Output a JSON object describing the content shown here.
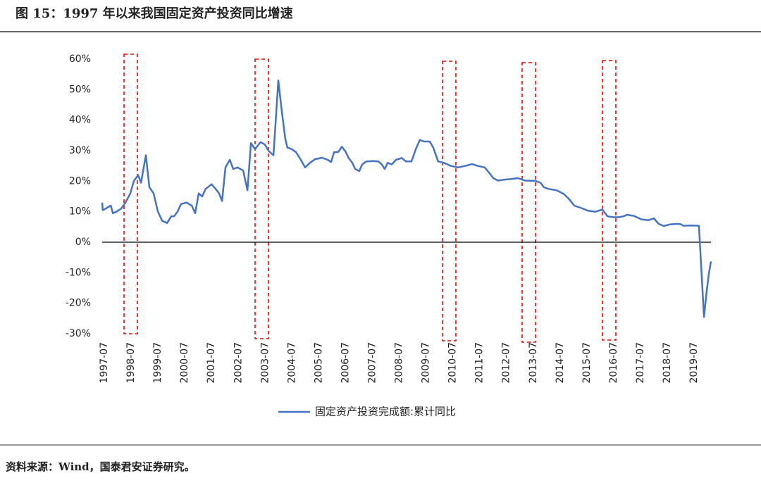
{
  "chart_data": {
    "type": "line",
    "title": "图 15：1997 年以来我国固定资产投资同比增速",
    "source": "资料来源：Wind，国泰君安证券研究。",
    "x": [
      1997.42,
      1997.44,
      1997.55,
      1997.74,
      1997.82,
      1997.95,
      1998.13,
      1998.29,
      1998.47,
      1998.6,
      1998.76,
      1998.87,
      1999.05,
      1999.18,
      1999.34,
      1999.5,
      1999.66,
      1999.84,
      2000.0,
      2000.1,
      2000.23,
      2000.36,
      2000.57,
      2000.76,
      2000.89,
      2001.02,
      2001.15,
      2001.28,
      2001.5,
      2001.65,
      2001.78,
      2001.89,
      2002.02,
      2002.18,
      2002.31,
      2002.47,
      2002.68,
      2002.84,
      2002.97,
      2003.12,
      2003.33,
      2003.49,
      2003.62,
      2003.81,
      2003.99,
      2004.12,
      2004.25,
      2004.33,
      2004.49,
      2004.65,
      2004.83,
      2004.99,
      2005.17,
      2005.36,
      2005.62,
      2005.83,
      2005.96,
      2006.07,
      2006.23,
      2006.36,
      2006.49,
      2006.62,
      2006.75,
      2006.86,
      2007.01,
      2007.12,
      2007.28,
      2007.54,
      2007.72,
      2007.85,
      2007.96,
      2008.07,
      2008.22,
      2008.38,
      2008.59,
      2008.75,
      2008.96,
      2009.12,
      2009.27,
      2009.43,
      2009.64,
      2009.77,
      2009.95,
      2010.17,
      2010.43,
      2010.69,
      2010.96,
      2011.22,
      2011.43,
      2011.69,
      2011.88,
      2012.01,
      2012.19,
      2012.4,
      2012.67,
      2012.93,
      2013.19,
      2013.58,
      2013.77,
      2013.9,
      2014.06,
      2014.37,
      2014.64,
      2014.85,
      2015.03,
      2015.29,
      2015.56,
      2015.82,
      2016.08,
      2016.27,
      2016.48,
      2016.69,
      2016.87,
      2017.0,
      2017.26,
      2017.53,
      2017.79,
      2018.0,
      2018.18,
      2018.37,
      2018.58,
      2018.84,
      2019.0,
      2019.1,
      2019.37,
      2019.68,
      2019.87,
      2019.97,
      2020.05,
      2020.13
    ],
    "series": [
      {
        "name": "固定资产投资完成额:累计同比",
        "color": "#4472c4",
        "values": [
          13,
          10.5,
          11,
          12,
          9.5,
          10,
          11,
          13,
          16,
          20,
          22,
          19.5,
          28.5,
          18,
          16,
          10,
          7,
          6.3,
          8.5,
          8.5,
          10,
          12.5,
          13,
          12,
          9.5,
          16,
          15,
          17.5,
          19,
          17.5,
          16,
          13.5,
          24.5,
          27,
          24,
          24.5,
          23.5,
          17,
          32.5,
          30.5,
          32.8,
          32,
          30,
          28.5,
          53,
          43,
          34,
          31,
          30.5,
          29.5,
          27,
          24.5,
          26,
          27.2,
          27.7,
          27,
          26.3,
          29.5,
          29.6,
          31.3,
          29.8,
          27.5,
          26,
          24,
          23.3,
          25.5,
          26.5,
          26.6,
          26.5,
          25.5,
          24,
          26,
          25.5,
          27,
          27.6,
          26.5,
          26.5,
          30.5,
          33.5,
          33,
          33,
          31,
          26.5,
          26,
          25,
          24.5,
          25,
          25.6,
          25,
          24.5,
          22.5,
          21,
          20.2,
          20.5,
          20.7,
          21,
          20.2,
          20.1,
          19.5,
          18,
          17.5,
          17,
          15.8,
          14,
          12,
          11.2,
          10.3,
          10,
          10.7,
          8.5,
          8.2,
          8.2,
          8.5,
          9,
          8.6,
          7.5,
          7.2,
          7.8,
          6,
          5.3,
          5.8,
          6,
          5.9,
          5.4,
          5.5,
          5.4,
          -24.5,
          -16.1,
          -10.3,
          -6.3
        ]
      }
    ],
    "xlim": [
      1997.42,
      2020.13
    ],
    "xticks": [
      {
        "value": 1997.5,
        "label": "1997-07"
      },
      {
        "value": 1998.5,
        "label": "1998-07"
      },
      {
        "value": 1999.5,
        "label": "1999-07"
      },
      {
        "value": 2000.5,
        "label": "2000-07"
      },
      {
        "value": 2001.5,
        "label": "2001-07"
      },
      {
        "value": 2002.5,
        "label": "2002-07"
      },
      {
        "value": 2003.5,
        "label": "2003-07"
      },
      {
        "value": 2004.5,
        "label": "2004-07"
      },
      {
        "value": 2005.5,
        "label": "2005-07"
      },
      {
        "value": 2006.5,
        "label": "2006-07"
      },
      {
        "value": 2007.5,
        "label": "2007-07"
      },
      {
        "value": 2008.5,
        "label": "2008-07"
      },
      {
        "value": 2009.5,
        "label": "2009-07"
      },
      {
        "value": 2010.5,
        "label": "2010-07"
      },
      {
        "value": 2011.5,
        "label": "2011-07"
      },
      {
        "value": 2012.5,
        "label": "2012-07"
      },
      {
        "value": 2013.5,
        "label": "2013-07"
      },
      {
        "value": 2014.5,
        "label": "2014-07"
      },
      {
        "value": 2015.5,
        "label": "2015-07"
      },
      {
        "value": 2016.5,
        "label": "2016-07"
      },
      {
        "value": 2017.5,
        "label": "2017-07"
      },
      {
        "value": 2018.5,
        "label": "2018-07"
      },
      {
        "value": 2019.5,
        "label": "2019-07"
      }
    ],
    "ylim": [
      -30,
      60
    ],
    "yticks": [
      {
        "value": -30,
        "label": "-30%"
      },
      {
        "value": -20,
        "label": "-20%"
      },
      {
        "value": -10,
        "label": "-10%"
      },
      {
        "value": 0,
        "label": "0%"
      },
      {
        "value": 10,
        "label": "10%"
      },
      {
        "value": 20,
        "label": "20%"
      },
      {
        "value": 30,
        "label": "30%"
      },
      {
        "value": 40,
        "label": "40%"
      },
      {
        "value": 50,
        "label": "50%"
      },
      {
        "value": 60,
        "label": "60%"
      }
    ],
    "grid": false
  }
}
